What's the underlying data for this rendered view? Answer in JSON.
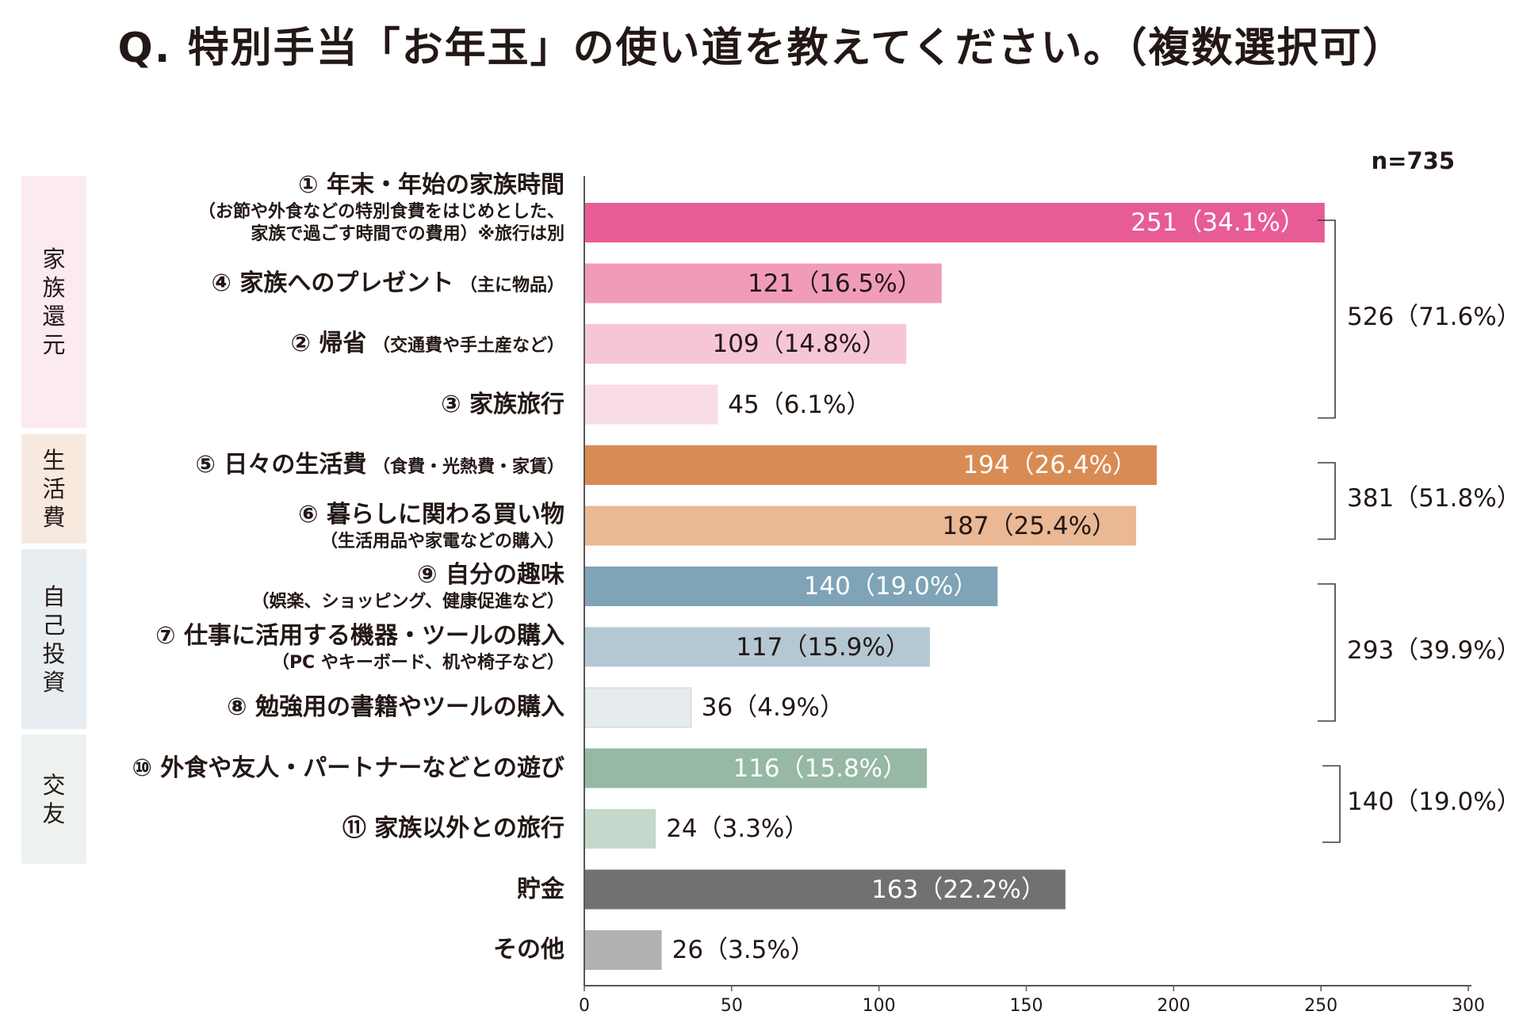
{
  "title": "Q.  特別手当「お年玉」の使い道を教えてください。（複数選択可）",
  "sample_size": "n=735",
  "groups": [
    {
      "name": "家族還元",
      "color": "#fbeaf1",
      "total": "526（71.6%）"
    },
    {
      "name": "生活費",
      "color": "#f8e9df",
      "total": "381（51.8%）"
    },
    {
      "name": "自己投資",
      "color": "#e7edf1",
      "total": "293（39.9%）"
    },
    {
      "name": "交友",
      "color": "#edf2ee",
      "total": "140（19.0%）"
    }
  ],
  "chart_data": {
    "type": "bar",
    "orientation": "horizontal",
    "title": "特別手当「お年玉」の使い道",
    "xlim": [
      0,
      300
    ],
    "xticks": [
      0,
      50,
      100,
      150,
      200,
      250,
      300
    ],
    "categories": [
      "① 年末・年始の家族時間",
      "④ 家族へのプレゼント",
      "② 帰省",
      "③ 家族旅行",
      "⑤ 日々の生活費",
      "⑥ 暮らしに関わる買い物",
      "⑨ 自分の趣味",
      "⑦ 仕事に活用する機器・ツールの購入",
      "⑧ 勉強用の書籍やツールの購入",
      "⑩ 外食や友人・パートナーなどとの遊び",
      "⑪ 家族以外との旅行",
      "貯金",
      "その他"
    ],
    "category_notes": [
      "（お節や外食などの特別食費をはじめとした、|家族で過ごす時間での費用）※旅行は別",
      "（主に物品）",
      "（交通費や手土産など）",
      "",
      "（食費・光熱費・家賃）",
      "（生活用品や家電などの購入）",
      "（娯楽、ショッピング、健康促進など）",
      "（PC やキーボード、机や椅子など）",
      "",
      "",
      "",
      "",
      ""
    ],
    "values": [
      251,
      121,
      109,
      45,
      194,
      187,
      140,
      117,
      36,
      116,
      24,
      163,
      26
    ],
    "value_labels": [
      "251（34.1%）",
      "121（16.5%）",
      "109（14.8%）",
      "45（6.1%）",
      "194（26.4%）",
      "187（25.4%）",
      "140（19.0%）",
      "117（15.9%）",
      "36（4.9%）",
      "116（15.8%）",
      "24（3.3%）",
      "163（22.2%）",
      "26（3.5%）"
    ],
    "colors": [
      "#e75c95",
      "#f19bbb",
      "#f6c6d7",
      "#f8dce6",
      "#d98b54",
      "#eab894",
      "#7fa3b7",
      "#b4c8d4",
      "#e6ebee",
      "#96b8a4",
      "#c6d7cb",
      "#727171",
      "#b1b1b1"
    ],
    "groups": [
      {
        "name": "家族還元",
        "indices": [
          0,
          1,
          2,
          3
        ],
        "total": 526,
        "percent": 71.6
      },
      {
        "name": "生活費",
        "indices": [
          4,
          5
        ],
        "total": 381,
        "percent": 51.8
      },
      {
        "name": "自己投資",
        "indices": [
          6,
          7,
          8
        ],
        "total": 293,
        "percent": 39.9
      },
      {
        "name": "交友",
        "indices": [
          9,
          10
        ],
        "total": 140,
        "percent": 19.0
      }
    ]
  }
}
